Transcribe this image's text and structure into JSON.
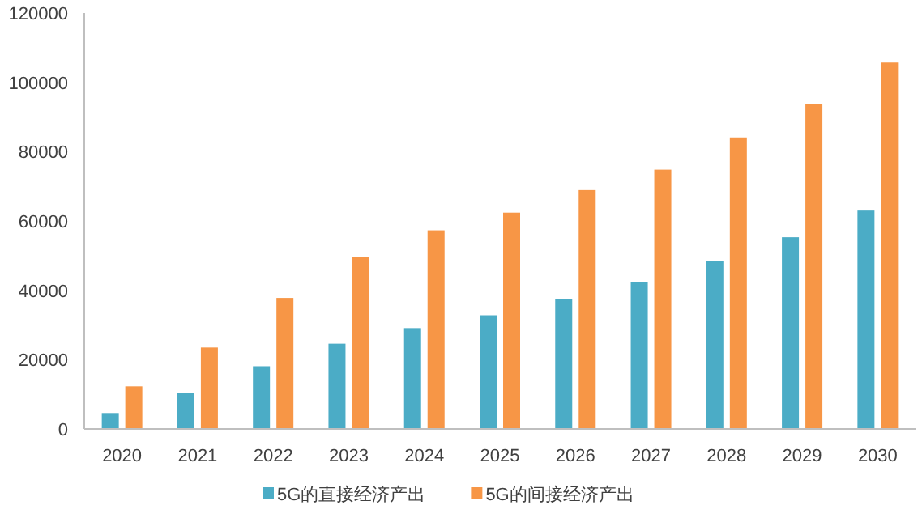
{
  "chart_data": {
    "type": "bar",
    "categories": [
      "2020",
      "2021",
      "2022",
      "2023",
      "2024",
      "2025",
      "2026",
      "2027",
      "2028",
      "2029",
      "2030"
    ],
    "series": [
      {
        "name": "5G的直接经济产出",
        "color": "#4bacc6",
        "values": [
          4600,
          10400,
          18100,
          24600,
          29100,
          32800,
          37500,
          42300,
          48500,
          55300,
          63000
        ]
      },
      {
        "name": "5G的间接经济产出",
        "color": "#f79646",
        "values": [
          12300,
          23500,
          37800,
          49700,
          57300,
          62400,
          68900,
          74800,
          84100,
          93800,
          105700
        ]
      }
    ],
    "ylim": [
      0,
      120000
    ],
    "yticks": [
      0,
      20000,
      40000,
      60000,
      80000,
      100000,
      120000
    ],
    "grid": false,
    "legend": "bottom"
  }
}
